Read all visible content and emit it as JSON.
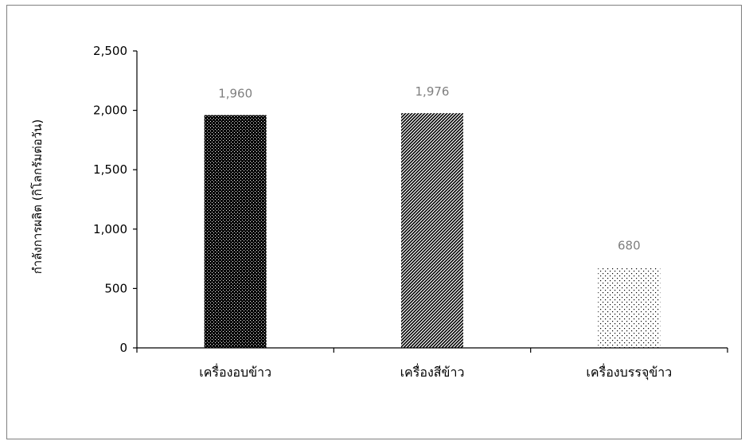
{
  "chart_data": {
    "type": "bar",
    "title": "",
    "xlabel": "",
    "ylabel": "กำลังการผลิต (กิโลกรัมต่อวัน)",
    "categories": [
      "เครื่องอบข้าว",
      "เครื่องสีข้าว",
      "เครื่องบรรจุข้าว"
    ],
    "values": [
      1960,
      1976,
      680
    ],
    "value_labels": [
      "1,960",
      "1,976",
      "680"
    ],
    "ylim": [
      0,
      2500
    ],
    "yticks": [
      0,
      500,
      1000,
      1500,
      2000,
      2500
    ],
    "ytick_labels": [
      "0",
      "500",
      "1,000",
      "1,500",
      "2,000",
      "2,500"
    ],
    "bar_patterns": [
      "dense-checker",
      "diagonal-hatch",
      "sparse-dots"
    ],
    "bar_color": "#000000",
    "label_color": "#7f7f7f",
    "grid": false,
    "legend": "none"
  }
}
